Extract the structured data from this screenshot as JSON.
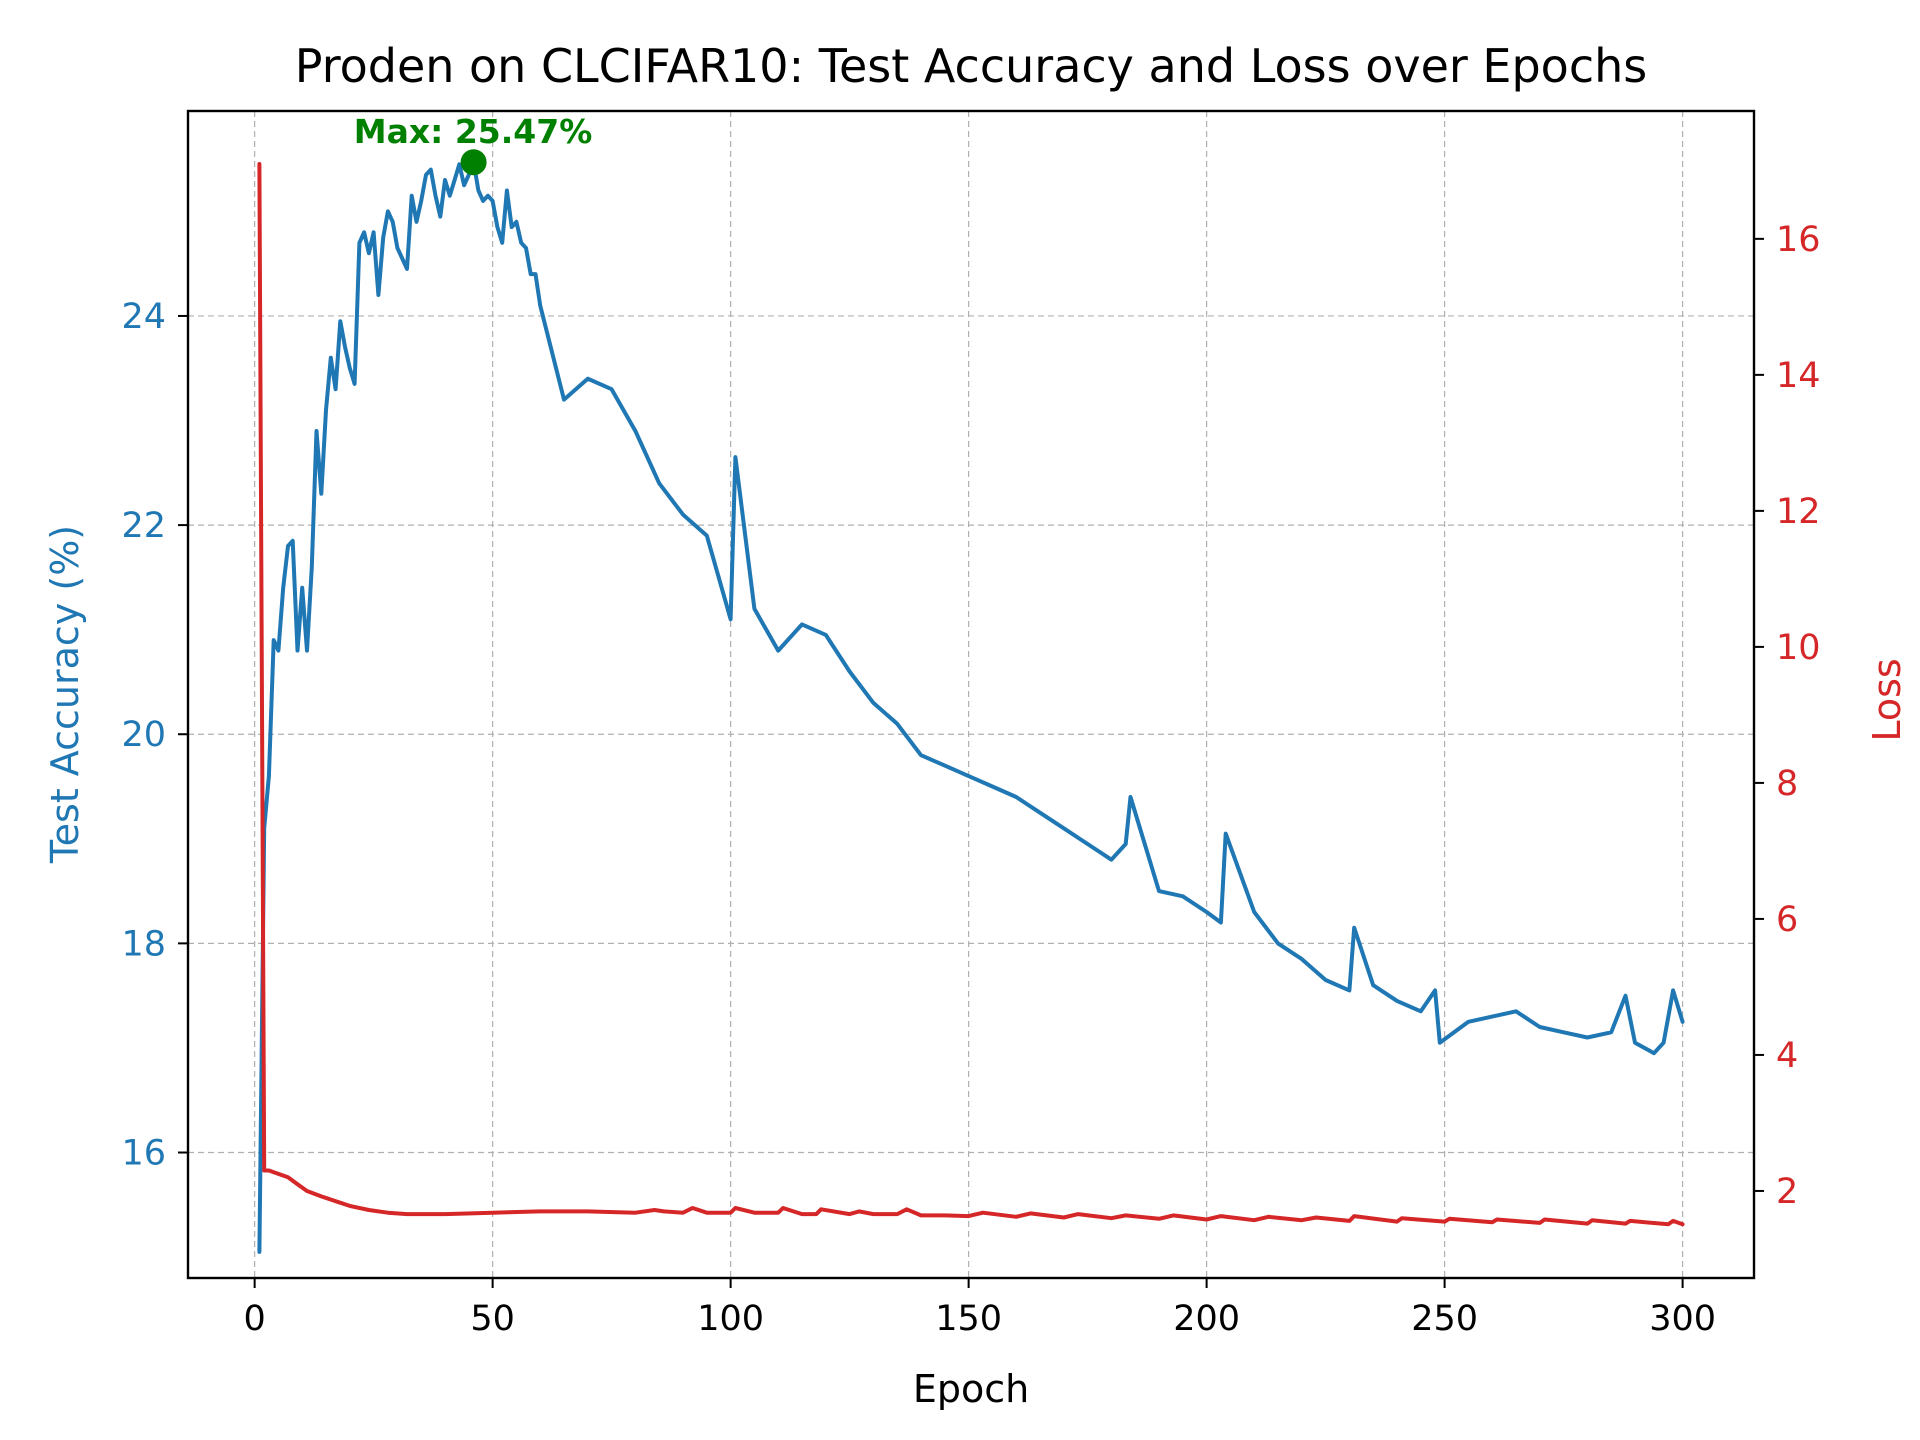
{
  "chart_data": {
    "type": "line",
    "title": "Proden on CLCIFAR10: Test Accuracy and Loss over Epochs",
    "xlabel": "Epoch",
    "ylabel_left": "Test Accuracy (%)",
    "ylabel_right": "Loss",
    "xlim": [
      -14,
      315
    ],
    "ylim_left": [
      14.8,
      25.96
    ],
    "ylim_right": [
      0.72,
      17.88
    ],
    "x_ticks": [
      0,
      50,
      100,
      150,
      200,
      250,
      300
    ],
    "y_ticks_left": [
      16,
      18,
      20,
      22,
      24
    ],
    "y_ticks_right": [
      2,
      4,
      6,
      8,
      10,
      12,
      14,
      16
    ],
    "grid": true,
    "colors": {
      "accuracy": "#1f77b4",
      "loss": "#d62728",
      "max_marker": "#008000"
    },
    "annotation": {
      "text": "Max: 25.47%",
      "x": 46,
      "y": 25.47
    },
    "series": [
      {
        "axis": "left",
        "color": "#1f77b4",
        "x": [
          1,
          2,
          3,
          4,
          5,
          6,
          7,
          8,
          9,
          10,
          11,
          12,
          13,
          14,
          15,
          16,
          17,
          18,
          19,
          20,
          21,
          22,
          23,
          24,
          25,
          26,
          27,
          28,
          29,
          30,
          31,
          32,
          33,
          34,
          35,
          36,
          37,
          38,
          39,
          40,
          41,
          42,
          43,
          44,
          45,
          46,
          47,
          48,
          49,
          50,
          51,
          52,
          53,
          54,
          55,
          56,
          57,
          58,
          59,
          60,
          65,
          70,
          75,
          80,
          85,
          90,
          95,
          100,
          101,
          105,
          110,
          115,
          120,
          125,
          130,
          135,
          140,
          145,
          150,
          155,
          160,
          165,
          170,
          175,
          180,
          183,
          184,
          190,
          195,
          200,
          203,
          204,
          210,
          215,
          220,
          225,
          230,
          231,
          235,
          240,
          245,
          248,
          249,
          255,
          260,
          265,
          270,
          275,
          280,
          285,
          288,
          290,
          294,
          296,
          298,
          300
        ],
        "values": [
          15.05,
          19.1,
          19.6,
          20.9,
          20.8,
          21.4,
          21.8,
          21.85,
          20.8,
          21.4,
          20.8,
          21.6,
          22.9,
          22.3,
          23.1,
          23.6,
          23.3,
          23.95,
          23.7,
          23.5,
          23.35,
          24.7,
          24.8,
          24.6,
          24.8,
          24.2,
          24.75,
          25.0,
          24.9,
          24.65,
          24.55,
          24.45,
          25.15,
          24.9,
          25.1,
          25.35,
          25.4,
          25.15,
          24.95,
          25.3,
          25.15,
          25.3,
          25.45,
          25.25,
          25.35,
          25.47,
          25.2,
          25.1,
          25.15,
          25.1,
          24.85,
          24.7,
          25.2,
          24.85,
          24.9,
          24.7,
          24.65,
          24.4,
          24.4,
          24.1,
          23.2,
          23.4,
          23.3,
          22.9,
          22.4,
          22.1,
          21.9,
          21.1,
          22.65,
          21.2,
          20.8,
          21.05,
          20.95,
          20.6,
          20.3,
          20.1,
          19.8,
          19.7,
          19.6,
          19.5,
          19.4,
          19.25,
          19.1,
          18.95,
          18.8,
          18.95,
          19.4,
          18.5,
          18.45,
          18.3,
          18.2,
          19.05,
          18.3,
          18.0,
          17.85,
          17.65,
          17.55,
          18.15,
          17.6,
          17.45,
          17.35,
          17.55,
          17.05,
          17.25,
          17.3,
          17.35,
          17.2,
          17.15,
          17.1,
          17.15,
          17.5,
          17.05,
          16.95,
          17.05,
          17.55,
          17.25
        ]
      },
      {
        "axis": "right",
        "color": "#d62728",
        "x": [
          1,
          2,
          3,
          5,
          7,
          9,
          11,
          14,
          17,
          20,
          24,
          28,
          32,
          36,
          40,
          50,
          60,
          70,
          80,
          84,
          86,
          90,
          92,
          95,
          100,
          101,
          105,
          110,
          111,
          115,
          118,
          119,
          125,
          127,
          130,
          135,
          137,
          140,
          145,
          150,
          153,
          160,
          163,
          170,
          173,
          180,
          183,
          190,
          193,
          200,
          203,
          210,
          213,
          220,
          223,
          230,
          231,
          240,
          241,
          250,
          251,
          260,
          261,
          270,
          271,
          280,
          281,
          288,
          289,
          297,
          298,
          300
        ],
        "values": [
          17.1,
          2.3,
          2.3,
          2.25,
          2.2,
          2.1,
          2.0,
          1.92,
          1.85,
          1.78,
          1.72,
          1.68,
          1.66,
          1.66,
          1.66,
          1.68,
          1.7,
          1.7,
          1.68,
          1.72,
          1.7,
          1.68,
          1.75,
          1.68,
          1.68,
          1.75,
          1.68,
          1.68,
          1.75,
          1.66,
          1.66,
          1.73,
          1.66,
          1.7,
          1.66,
          1.66,
          1.73,
          1.64,
          1.64,
          1.63,
          1.68,
          1.62,
          1.67,
          1.61,
          1.66,
          1.6,
          1.64,
          1.59,
          1.64,
          1.58,
          1.63,
          1.57,
          1.62,
          1.57,
          1.61,
          1.56,
          1.63,
          1.55,
          1.6,
          1.55,
          1.59,
          1.54,
          1.58,
          1.53,
          1.58,
          1.52,
          1.57,
          1.52,
          1.56,
          1.51,
          1.56,
          1.51
        ]
      }
    ]
  }
}
